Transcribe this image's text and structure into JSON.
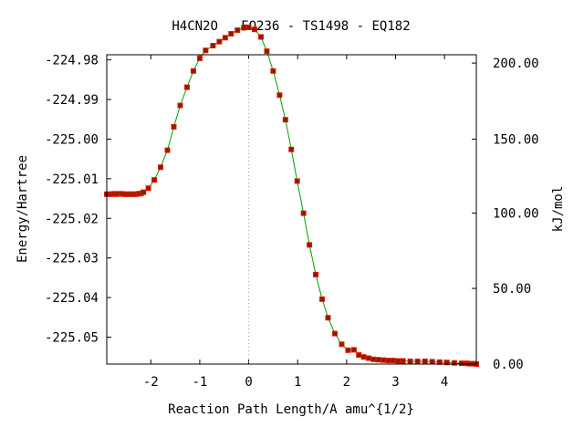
{
  "chart_data": {
    "type": "scatter",
    "title": "H4CN2O   EQ236 - TS1498 - EQ182",
    "xlabel": "Reaction Path Length/A amu^{1/2}",
    "ylabel": "Energy/Hartree",
    "y2label": "kJ/mol",
    "xlim": [
      -2.9,
      4.65
    ],
    "ylim": [
      -225.0568,
      -224.9787
    ],
    "grid": false,
    "legend": "none",
    "x_ticks": [
      "-2",
      "-1",
      "0",
      "1",
      "2",
      "3",
      "4"
    ],
    "x_tick_values": [
      -2,
      -1,
      0,
      1,
      2,
      3,
      4
    ],
    "y_ticks": [
      "-224.98",
      "-224.99",
      "-225.00",
      "-225.01",
      "-225.02",
      "-225.03",
      "-225.04",
      "-225.05"
    ],
    "y_tick_values": [
      -224.98,
      -224.99,
      -225.0,
      -225.01,
      -225.02,
      -225.03,
      -225.04,
      -225.05
    ],
    "y2_ticks": [
      "200.00",
      "150.00",
      "100.00",
      "50.00",
      "0.00"
    ],
    "y2_tick_values": [
      -224.9808,
      -225.0,
      -225.0187,
      -225.0377,
      -225.0568
    ],
    "colors": {
      "curve": "#00a000",
      "marker_fill": "#8b1a00",
      "marker_edge": "#e01a00",
      "zero_line": "#a0a0a0"
    },
    "series": [
      {
        "x": [
          -2.9,
          -2.85,
          -2.8,
          -2.75,
          -2.7,
          -2.65,
          -2.6,
          -2.55,
          -2.5,
          -2.45,
          -2.4,
          -2.35,
          -2.3,
          -2.25,
          -2.2,
          -2.15,
          -2.05,
          -1.93,
          -1.8,
          -1.66,
          -1.53,
          -1.4,
          -1.26,
          -1.13,
          -1.0,
          -0.88,
          -0.73,
          -0.6,
          -0.48,
          -0.36,
          -0.23,
          -0.1,
          0.0,
          0.12,
          0.25,
          0.37,
          0.5,
          0.63,
          0.75,
          0.87,
          0.99,
          1.12,
          1.24,
          1.37,
          1.5,
          1.62,
          1.76,
          1.9,
          2.03,
          2.15,
          2.25,
          2.35,
          2.45,
          2.55,
          2.65,
          2.75,
          2.85,
          2.95,
          3.05,
          3.15,
          3.3,
          3.45,
          3.6,
          3.75,
          3.9,
          4.05,
          4.2,
          4.35,
          4.45,
          4.5,
          4.55,
          4.6,
          4.65
        ],
        "y": [
          -225.0139,
          -225.0139,
          -225.0139,
          -225.0138,
          -225.0139,
          -225.0138,
          -225.0138,
          -225.0139,
          -225.0139,
          -225.0139,
          -225.0139,
          -225.0139,
          -225.0139,
          -225.0138,
          -225.0137,
          -225.0134,
          -225.0124,
          -225.0103,
          -225.0071,
          -225.0028,
          -224.9969,
          -224.9915,
          -224.9869,
          -224.9828,
          -224.9796,
          -224.9776,
          -224.9764,
          -224.9754,
          -224.9744,
          -224.9734,
          -224.9725,
          -224.9719,
          -224.9718,
          -224.9723,
          -224.9742,
          -224.9778,
          -224.9828,
          -224.9889,
          -224.9951,
          -225.0026,
          -225.0106,
          -225.0187,
          -225.0267,
          -225.0342,
          -225.0404,
          -225.0451,
          -225.0491,
          -225.0518,
          -225.0533,
          -225.0532,
          -225.0545,
          -225.055,
          -225.0553,
          -225.0556,
          -225.0557,
          -225.0558,
          -225.0559,
          -225.0559,
          -225.056,
          -225.056,
          -225.0561,
          -225.0561,
          -225.0561,
          -225.0562,
          -225.0563,
          -225.0564,
          -225.0565,
          -225.0566,
          -225.0566,
          -225.0567,
          -225.0567,
          -225.0567,
          -225.0568
        ]
      }
    ]
  }
}
